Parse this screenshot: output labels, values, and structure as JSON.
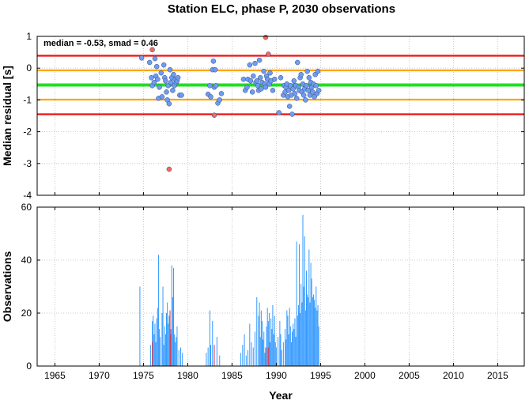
{
  "chart_data": [
    {
      "type": "scatter",
      "title": "Station ELC, phase P, 2030 observations",
      "annotation": "median = -0.53, smad = 0.46",
      "xlabel": "",
      "ylabel": "Median residual [s]",
      "xlim": [
        1963,
        2018
      ],
      "ylim": [
        -4,
        1
      ],
      "yticks": [
        1,
        0,
        -1,
        -2,
        -3,
        -4
      ],
      "grid": true,
      "reference_lines": [
        {
          "name": "median",
          "value": -0.53,
          "color": "#22dd22"
        },
        {
          "name": "median + 1 smad",
          "value": -0.07,
          "color": "#ffa500"
        },
        {
          "name": "median - 1 smad",
          "value": -0.99,
          "color": "#ffa500"
        },
        {
          "name": "median + 2 smad",
          "value": 0.39,
          "color": "#ee1111"
        },
        {
          "name": "median - 2 smad",
          "value": -1.45,
          "color": "#ee1111"
        }
      ],
      "series": [
        {
          "color": "#6f9cf0",
          "points": [
            [
              1974.8,
              0.32
            ],
            [
              1975.7,
              0.18
            ],
            [
              1975.9,
              -0.3
            ],
            [
              1976.0,
              -0.55
            ],
            [
              1976.2,
              -0.45
            ],
            [
              1976.3,
              0.3
            ],
            [
              1976.4,
              -0.25
            ],
            [
              1976.5,
              0.05
            ],
            [
              1976.6,
              -0.35
            ],
            [
              1976.7,
              -0.95
            ],
            [
              1976.8,
              -0.6
            ],
            [
              1977.0,
              -0.15
            ],
            [
              1977.1,
              -0.9
            ],
            [
              1977.3,
              0.1
            ],
            [
              1977.4,
              -0.3
            ],
            [
              1977.5,
              -0.4
            ],
            [
              1977.6,
              -0.75
            ],
            [
              1977.7,
              -1.0
            ],
            [
              1977.8,
              -0.55
            ],
            [
              1977.9,
              -1.12
            ],
            [
              1978.0,
              -0.05
            ],
            [
              1978.1,
              -0.45
            ],
            [
              1978.2,
              -0.3
            ],
            [
              1978.3,
              -0.7
            ],
            [
              1978.4,
              -0.2
            ],
            [
              1978.5,
              -0.55
            ],
            [
              1978.6,
              -0.35
            ],
            [
              1978.7,
              -0.45
            ],
            [
              1978.8,
              -0.4
            ],
            [
              1978.9,
              -0.3
            ],
            [
              1979.1,
              -0.85
            ],
            [
              1979.3,
              -0.85
            ],
            [
              1982.3,
              -0.82
            ],
            [
              1982.5,
              -0.55
            ],
            [
              1982.6,
              -0.9
            ],
            [
              1982.8,
              -0.05
            ],
            [
              1982.9,
              0.22
            ],
            [
              1983.0,
              -0.6
            ],
            [
              1983.1,
              -0.05
            ],
            [
              1983.2,
              -0.55
            ],
            [
              1983.4,
              -1.1
            ],
            [
              1983.6,
              -1.0
            ],
            [
              1983.8,
              -0.8
            ],
            [
              1986.3,
              -0.35
            ],
            [
              1986.5,
              -0.7
            ],
            [
              1986.7,
              -0.6
            ],
            [
              1986.8,
              -0.35
            ],
            [
              1987.0,
              0.1
            ],
            [
              1987.1,
              -0.4
            ],
            [
              1987.3,
              -0.75
            ],
            [
              1987.4,
              -0.25
            ],
            [
              1987.6,
              0.15
            ],
            [
              1987.7,
              -0.45
            ],
            [
              1987.8,
              -0.4
            ],
            [
              1987.9,
              -0.55
            ],
            [
              1988.0,
              -0.7
            ],
            [
              1988.1,
              0.25
            ],
            [
              1988.2,
              -0.3
            ],
            [
              1988.3,
              -0.65
            ],
            [
              1988.4,
              -0.45
            ],
            [
              1988.6,
              -0.1
            ],
            [
              1988.7,
              -0.5
            ],
            [
              1988.8,
              -0.6
            ],
            [
              1988.9,
              -0.25
            ],
            [
              1989.0,
              -0.35
            ],
            [
              1989.2,
              -0.5
            ],
            [
              1989.3,
              -0.15
            ],
            [
              1989.4,
              -0.4
            ],
            [
              1989.6,
              -0.7
            ],
            [
              1989.8,
              -0.35
            ],
            [
              1990.3,
              -1.4
            ],
            [
              1990.5,
              -0.3
            ],
            [
              1990.8,
              -0.85
            ],
            [
              1990.9,
              -0.55
            ],
            [
              1991.0,
              -0.75
            ],
            [
              1991.1,
              -0.6
            ],
            [
              1991.2,
              -0.5
            ],
            [
              1991.3,
              -0.9
            ],
            [
              1991.4,
              -0.7
            ],
            [
              1991.5,
              -1.2
            ],
            [
              1991.6,
              -0.55
            ],
            [
              1991.7,
              -0.85
            ],
            [
              1991.8,
              -1.45
            ],
            [
              1991.9,
              -0.65
            ],
            [
              1992.0,
              -0.4
            ],
            [
              1992.1,
              -0.8
            ],
            [
              1992.2,
              -0.55
            ],
            [
              1992.3,
              -0.95
            ],
            [
              1992.4,
              0.18
            ],
            [
              1992.5,
              -0.6
            ],
            [
              1992.6,
              -0.7
            ],
            [
              1992.7,
              -0.3
            ],
            [
              1992.8,
              -0.2
            ],
            [
              1992.9,
              -0.75
            ],
            [
              1993.0,
              -0.5
            ],
            [
              1993.1,
              -0.85
            ],
            [
              1993.2,
              -0.65
            ],
            [
              1993.3,
              -1.0
            ],
            [
              1993.4,
              -0.55
            ],
            [
              1993.5,
              -0.1
            ],
            [
              1993.6,
              -0.7
            ],
            [
              1993.7,
              -0.3
            ],
            [
              1993.8,
              -0.85
            ],
            [
              1993.9,
              -0.45
            ],
            [
              1994.0,
              -0.6
            ],
            [
              1994.1,
              -0.75
            ],
            [
              1994.2,
              -0.5
            ],
            [
              1994.3,
              -0.9
            ],
            [
              1994.4,
              -0.2
            ],
            [
              1994.5,
              -0.55
            ],
            [
              1994.6,
              -0.8
            ],
            [
              1994.7,
              -0.1
            ],
            [
              1994.8,
              -0.7
            ]
          ]
        },
        {
          "color": "#f06a5a",
          "points": [
            [
              1976.0,
              0.58
            ],
            [
              1977.9,
              -3.18
            ],
            [
              1983.0,
              -1.48
            ],
            [
              1988.8,
              0.97
            ],
            [
              1989.1,
              0.44
            ]
          ]
        }
      ]
    },
    {
      "type": "bar",
      "title": "",
      "xlabel": "Year",
      "ylabel": "Observations",
      "xlim": [
        1963,
        2018
      ],
      "ylim": [
        0,
        60
      ],
      "xticks": [
        1965,
        1970,
        1975,
        1980,
        1985,
        1990,
        1995,
        2000,
        2005,
        2010,
        2015
      ],
      "yticks": [
        0,
        20,
        40,
        60
      ],
      "grid": true,
      "series": [
        {
          "color": "#3399ff",
          "bars": [
            [
              1974.6,
              30
            ],
            [
              1975.8,
              8
            ],
            [
              1976.0,
              17
            ],
            [
              1976.1,
              19
            ],
            [
              1976.2,
              12
            ],
            [
              1976.3,
              16
            ],
            [
              1976.4,
              9
            ],
            [
              1976.5,
              18
            ],
            [
              1976.6,
              22
            ],
            [
              1976.7,
              42
            ],
            [
              1976.8,
              14
            ],
            [
              1976.9,
              11
            ],
            [
              1977.1,
              20
            ],
            [
              1977.2,
              30
            ],
            [
              1977.3,
              8
            ],
            [
              1977.4,
              15
            ],
            [
              1977.5,
              12
            ],
            [
              1977.6,
              20
            ],
            [
              1977.7,
              24
            ],
            [
              1977.8,
              16
            ],
            [
              1977.9,
              19
            ],
            [
              1978.0,
              21
            ],
            [
              1978.1,
              14
            ],
            [
              1978.2,
              38
            ],
            [
              1978.3,
              26
            ],
            [
              1978.4,
              37
            ],
            [
              1978.5,
              12
            ],
            [
              1978.6,
              9
            ],
            [
              1978.7,
              11
            ],
            [
              1978.8,
              15
            ],
            [
              1979.0,
              6
            ],
            [
              1979.2,
              7
            ],
            [
              1979.4,
              5
            ],
            [
              1982.1,
              5
            ],
            [
              1982.3,
              7
            ],
            [
              1982.5,
              21
            ],
            [
              1982.6,
              8
            ],
            [
              1982.8,
              17
            ],
            [
              1983.0,
              6
            ],
            [
              1983.3,
              11
            ],
            [
              1983.6,
              4
            ],
            [
              1986.0,
              5
            ],
            [
              1986.2,
              8
            ],
            [
              1986.4,
              12
            ],
            [
              1986.6,
              4
            ],
            [
              1986.8,
              6
            ],
            [
              1987.0,
              16
            ],
            [
              1987.2,
              9
            ],
            [
              1987.4,
              7
            ],
            [
              1987.6,
              13
            ],
            [
              1987.8,
              26
            ],
            [
              1988.0,
              19
            ],
            [
              1988.1,
              24
            ],
            [
              1988.2,
              11
            ],
            [
              1988.3,
              21
            ],
            [
              1988.4,
              17
            ],
            [
              1988.5,
              10
            ],
            [
              1988.6,
              13
            ],
            [
              1988.7,
              5
            ],
            [
              1988.9,
              15
            ],
            [
              1989.0,
              22
            ],
            [
              1989.1,
              17
            ],
            [
              1989.2,
              20
            ],
            [
              1989.3,
              9
            ],
            [
              1989.4,
              18
            ],
            [
              1989.5,
              14
            ],
            [
              1989.6,
              23
            ],
            [
              1989.7,
              12
            ],
            [
              1989.8,
              19
            ],
            [
              1989.9,
              9
            ],
            [
              1990.0,
              7
            ],
            [
              1990.2,
              11
            ],
            [
              1990.4,
              17
            ],
            [
              1990.5,
              12
            ],
            [
              1990.6,
              6
            ],
            [
              1990.8,
              9
            ],
            [
              1991.0,
              14
            ],
            [
              1991.1,
              10
            ],
            [
              1991.2,
              21
            ],
            [
              1991.3,
              19
            ],
            [
              1991.4,
              12
            ],
            [
              1991.5,
              22
            ],
            [
              1991.6,
              15
            ],
            [
              1991.7,
              9
            ],
            [
              1991.8,
              13
            ],
            [
              1991.9,
              16
            ],
            [
              1992.0,
              14
            ],
            [
              1992.1,
              18
            ],
            [
              1992.2,
              11
            ],
            [
              1992.3,
              47
            ],
            [
              1992.4,
              19
            ],
            [
              1992.5,
              23
            ],
            [
              1992.6,
              46
            ],
            [
              1992.7,
              20
            ],
            [
              1992.8,
              31
            ],
            [
              1992.9,
              24
            ],
            [
              1993.0,
              57
            ],
            [
              1993.1,
              30
            ],
            [
              1993.2,
              49
            ],
            [
              1993.3,
              21
            ],
            [
              1993.4,
              36
            ],
            [
              1993.5,
              27
            ],
            [
              1993.6,
              26
            ],
            [
              1993.7,
              44
            ],
            [
              1993.8,
              24
            ],
            [
              1993.9,
              39
            ],
            [
              1994.0,
              33
            ],
            [
              1994.1,
              26
            ],
            [
              1994.2,
              27
            ],
            [
              1994.3,
              25
            ],
            [
              1994.4,
              22
            ],
            [
              1994.5,
              30
            ],
            [
              1994.6,
              21
            ],
            [
              1994.7,
              23
            ],
            [
              1994.8,
              15
            ]
          ]
        },
        {
          "color": "#dd3344",
          "bars": [
            [
              1976.0,
              9
            ],
            [
              1978.0,
              21
            ],
            [
              1978.1,
              12
            ],
            [
              1983.0,
              8
            ],
            [
              1988.8,
              7
            ],
            [
              1989.1,
              7
            ]
          ]
        }
      ]
    }
  ]
}
